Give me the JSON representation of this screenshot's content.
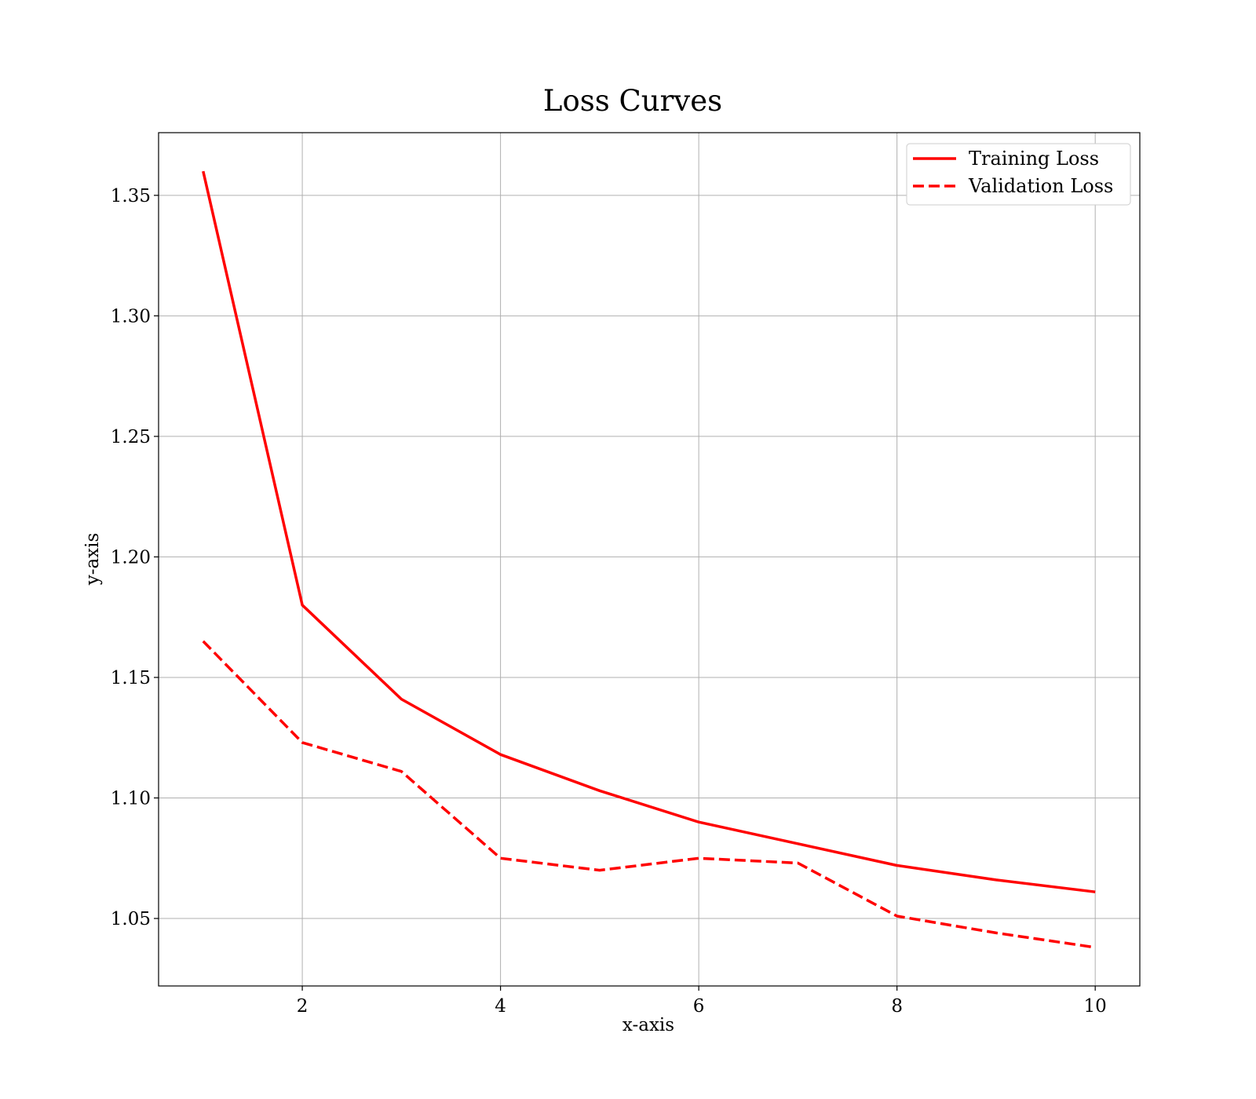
{
  "chart_data": {
    "type": "line",
    "title": "Loss Curves",
    "xlabel": "x-axis",
    "ylabel": "y-axis",
    "x": [
      1,
      2,
      3,
      4,
      5,
      6,
      7,
      8,
      9,
      10
    ],
    "series": [
      {
        "name": "Training Loss",
        "values": [
          1.36,
          1.18,
          1.141,
          1.118,
          1.103,
          1.09,
          1.081,
          1.072,
          1.066,
          1.061
        ],
        "color": "#ff0000",
        "linestyle": "solid"
      },
      {
        "name": "Validation Loss",
        "values": [
          1.165,
          1.123,
          1.111,
          1.075,
          1.07,
          1.075,
          1.073,
          1.051,
          1.044,
          1.038
        ],
        "color": "#ff0000",
        "linestyle": "dashed"
      }
    ],
    "xlim": [
      0.55,
      10.45
    ],
    "ylim": [
      1.022,
      1.376
    ],
    "xticks": [
      2,
      4,
      6,
      8,
      10
    ],
    "xtick_labels": [
      "2",
      "4",
      "6",
      "8",
      "10"
    ],
    "yticks": [
      1.05,
      1.1,
      1.15,
      1.2,
      1.25,
      1.3,
      1.35
    ],
    "ytick_labels": [
      "1.05",
      "1.10",
      "1.15",
      "1.20",
      "1.25",
      "1.30",
      "1.35"
    ],
    "grid": true,
    "legend_position": "upper right"
  }
}
